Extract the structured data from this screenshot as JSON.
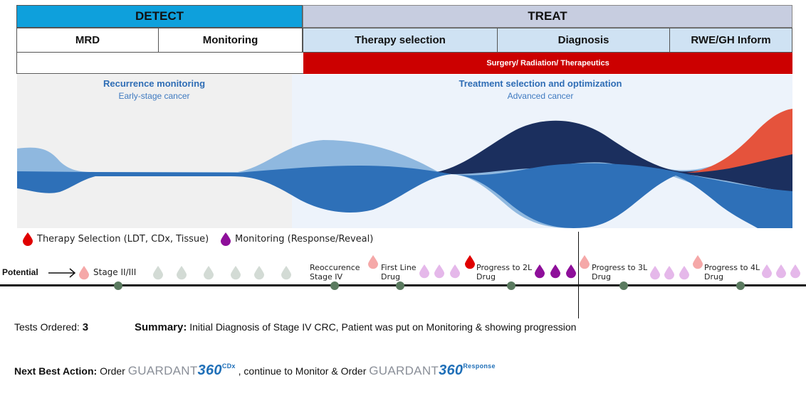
{
  "header": {
    "detect": "DETECT",
    "treat": "TREAT",
    "sub": [
      "MRD",
      "Monitoring",
      "Therapy selection",
      "Diagnosis",
      "RWE/GH Inform"
    ],
    "red_bar": "Surgery/ Radiation/ Therapeutics"
  },
  "stream": {
    "left_title": "Recurrence monitoring",
    "left_sub": "Early-stage cancer",
    "right_title": "Treatment selection and optimization",
    "right_sub": "Advanced cancer",
    "colors": {
      "light": "#8fb8df",
      "mid": "#2e70b8",
      "dark": "#1b2f5e",
      "red": "#e5533c",
      "bg_left": "#f0f0f0",
      "bg_right": "#edf3fb"
    }
  },
  "legend": {
    "therapy": "Therapy Selection (LDT, CDx, Tissue)",
    "monitoring": "Monitoring (Response/Reveal)",
    "therapy_color": "#e00000",
    "monitoring_color": "#8e0f9a"
  },
  "timeline": {
    "potential": "Potential",
    "stage2": "Stage II/III",
    "reoccurence_1": "Reoccurence",
    "reoccurence_2": "Stage IV",
    "first_line_1": "First Line",
    "first_line_2": "Drug",
    "p2_1": "Progress to 2L",
    "p2_2": "Drug",
    "p3_1": "Progress to 3L",
    "p3_2": "Drug",
    "p4_1": "Progress to 4L",
    "p4_2": "Drug",
    "node_color": "#5a7a5f"
  },
  "footer": {
    "tests_label": "Tests Ordered:",
    "tests_value": "3",
    "summary_label": "Summary:",
    "summary_text": "Initial Diagnosis of Stage IV CRC, Patient was put on Monitoring & showing progression",
    "nba_label": "Next Best Action:",
    "nba_order": "Order",
    "nba_mid": ", continue to Monitor & Order",
    "logo_word": "GUARDANT",
    "logo_num": "360",
    "logo1_sup": "CDx",
    "logo2_sup": "Response"
  }
}
